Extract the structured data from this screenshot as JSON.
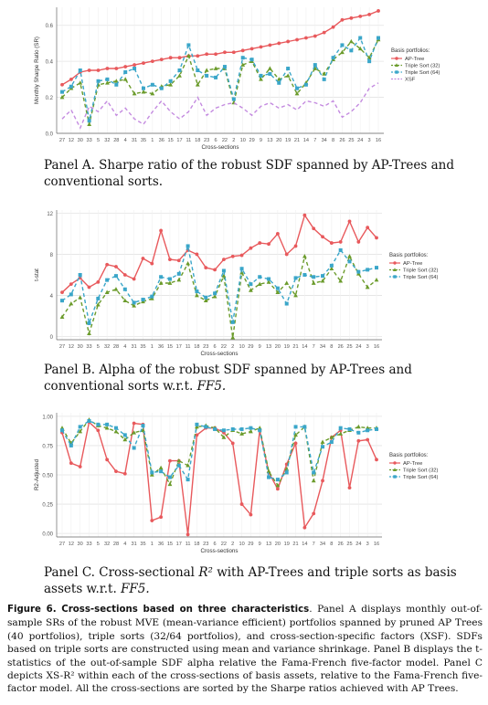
{
  "x_categories": [
    "27",
    "12",
    "30",
    "33",
    "5",
    "32",
    "28",
    "4",
    "31",
    "35",
    "1",
    "36",
    "15",
    "17",
    "11",
    "18",
    "23",
    "6",
    "22",
    "2",
    "10",
    "29",
    "9",
    "13",
    "20",
    "19",
    "21",
    "14",
    "7",
    "34",
    "8",
    "26",
    "25",
    "24",
    "3",
    "16"
  ],
  "colors": {
    "ap_trees": "#e8595c",
    "triple32": "#6b9b2b",
    "triple64": "#3aa6c9",
    "xsf": "#c48be0"
  },
  "legend_title": "Basis portfolios:",
  "chart_data": [
    {
      "type": "line",
      "panel": "A",
      "xlabel": "Cross-sections",
      "ylabel": "Monthly Sharpe Ratio (SR)",
      "ylim": [
        0,
        0.7
      ],
      "yticks": [
        "0.0",
        "0.2",
        "0.4",
        "0.6"
      ],
      "ytick_values": [
        0,
        0.2,
        0.4,
        0.6
      ],
      "grid": true,
      "legend": "right",
      "series": [
        {
          "name": "AP-Tree",
          "key": "ap_trees",
          "dash": "solid",
          "marker": "circle",
          "values": [
            0.27,
            0.3,
            0.34,
            0.35,
            0.35,
            0.36,
            0.36,
            0.37,
            0.38,
            0.39,
            0.4,
            0.41,
            0.42,
            0.42,
            0.43,
            0.43,
            0.44,
            0.44,
            0.45,
            0.45,
            0.46,
            0.47,
            0.48,
            0.49,
            0.5,
            0.51,
            0.52,
            0.53,
            0.54,
            0.56,
            0.59,
            0.63,
            0.64,
            0.65,
            0.66,
            0.68
          ]
        },
        {
          "name": "Triple Sort (32)",
          "key": "triple32",
          "dash": "dashed",
          "marker": "triangle",
          "values": [
            0.2,
            0.25,
            0.28,
            0.05,
            0.27,
            0.28,
            0.29,
            0.3,
            0.22,
            0.23,
            0.22,
            0.26,
            0.27,
            0.32,
            0.43,
            0.27,
            0.35,
            0.36,
            0.36,
            0.17,
            0.38,
            0.4,
            0.3,
            0.36,
            0.3,
            0.32,
            0.22,
            0.28,
            0.36,
            0.33,
            0.41,
            0.45,
            0.51,
            0.47,
            0.42,
            0.52
          ]
        },
        {
          "name": "Triple Sort (64)",
          "key": "triple64",
          "dash": "dashed",
          "marker": "square",
          "values": [
            0.23,
            0.26,
            0.35,
            0.07,
            0.29,
            0.3,
            0.27,
            0.34,
            0.36,
            0.25,
            0.27,
            0.25,
            0.29,
            0.35,
            0.49,
            0.35,
            0.32,
            0.31,
            0.37,
            0.19,
            0.42,
            0.41,
            0.32,
            0.33,
            0.28,
            0.36,
            0.25,
            0.27,
            0.38,
            0.3,
            0.42,
            0.49,
            0.46,
            0.53,
            0.4,
            0.53
          ]
        },
        {
          "name": "XSF",
          "key": "xsf",
          "dash": "dashed",
          "marker": "none",
          "values": [
            0.08,
            0.13,
            0.03,
            0.15,
            0.12,
            0.18,
            0.1,
            0.14,
            0.08,
            0.05,
            0.12,
            0.18,
            0.12,
            0.08,
            0.12,
            0.2,
            0.1,
            0.14,
            0.16,
            0.17,
            0.14,
            0.1,
            0.15,
            0.17,
            0.14,
            0.16,
            0.13,
            0.18,
            0.17,
            0.15,
            0.18,
            0.09,
            0.12,
            0.17,
            0.25,
            0.28
          ]
        }
      ]
    },
    {
      "type": "line",
      "panel": "B",
      "xlabel": "Cross-sections",
      "ylabel": "t-stat",
      "ylim": [
        -0.3,
        12.3
      ],
      "yticks": [
        "0",
        "4",
        "8",
        "12"
      ],
      "ytick_values": [
        0,
        4,
        8,
        12
      ],
      "grid": true,
      "legend": "right",
      "series": [
        {
          "name": "AP-Tree",
          "key": "ap_trees",
          "dash": "solid",
          "marker": "circle",
          "values": [
            4.3,
            5.1,
            5.7,
            4.8,
            5.3,
            7.0,
            6.8,
            6.0,
            5.6,
            7.6,
            7.1,
            10.3,
            7.5,
            7.4,
            8.4,
            8.0,
            6.7,
            6.5,
            7.5,
            7.8,
            7.9,
            8.6,
            9.1,
            9.0,
            10.0,
            8.0,
            8.8,
            11.8,
            10.5,
            9.7,
            9.1,
            9.2,
            11.2,
            9.2,
            10.6,
            9.6
          ]
        },
        {
          "name": "Triple Sort (32)",
          "key": "triple32",
          "dash": "dashed",
          "marker": "triangle",
          "values": [
            1.9,
            3.2,
            3.8,
            0.3,
            3.1,
            4.3,
            4.6,
            3.5,
            3.0,
            3.4,
            3.7,
            5.2,
            5.2,
            5.5,
            7.1,
            4.0,
            3.5,
            3.9,
            5.9,
            -0.1,
            6.2,
            4.5,
            5.1,
            5.3,
            4.3,
            5.2,
            4.0,
            7.8,
            5.2,
            5.4,
            6.6,
            5.4,
            7.8,
            6.1,
            4.8,
            5.5
          ]
        },
        {
          "name": "Triple Sort (64)",
          "key": "triple64",
          "dash": "dashed",
          "marker": "square",
          "values": [
            3.5,
            4.1,
            6.0,
            1.3,
            3.7,
            5.5,
            5.9,
            4.6,
            3.3,
            3.6,
            3.9,
            5.8,
            5.6,
            6.1,
            8.8,
            4.4,
            3.8,
            4.2,
            6.4,
            1.4,
            6.6,
            5.1,
            5.8,
            5.6,
            4.7,
            3.2,
            5.7,
            6.0,
            5.8,
            5.9,
            6.9,
            8.4,
            7.3,
            6.3,
            6.5,
            6.7
          ]
        }
      ]
    },
    {
      "type": "line",
      "panel": "C",
      "xlabel": "Cross-sections",
      "ylabel": "R2-Adjusted",
      "ylim": [
        -0.03,
        1.03
      ],
      "yticks": [
        "0.00",
        "0.25",
        "0.50",
        "0.75",
        "1.00"
      ],
      "ytick_values": [
        0,
        0.25,
        0.5,
        0.75,
        1.0
      ],
      "grid": true,
      "legend": "right",
      "series": [
        {
          "name": "AP-Tree",
          "key": "ap_trees",
          "dash": "solid",
          "marker": "circle",
          "values": [
            0.86,
            0.6,
            0.57,
            0.95,
            0.88,
            0.63,
            0.53,
            0.51,
            0.94,
            0.93,
            0.11,
            0.14,
            0.62,
            0.62,
            -0.01,
            0.84,
            0.9,
            0.9,
            0.86,
            0.77,
            0.25,
            0.16,
            0.88,
            0.52,
            0.38,
            0.59,
            0.77,
            0.05,
            0.17,
            0.45,
            0.82,
            0.88,
            0.39,
            0.79,
            0.8,
            0.63
          ]
        },
        {
          "name": "Triple Sort (32)",
          "key": "triple32",
          "dash": "dashed",
          "marker": "triangle",
          "values": [
            0.9,
            0.77,
            0.87,
            0.97,
            0.92,
            0.9,
            0.87,
            0.8,
            0.86,
            0.88,
            0.5,
            0.56,
            0.42,
            0.62,
            0.58,
            0.91,
            0.92,
            0.9,
            0.82,
            0.88,
            0.85,
            0.87,
            0.9,
            0.53,
            0.41,
            0.55,
            0.84,
            0.91,
            0.45,
            0.78,
            0.82,
            0.85,
            0.88,
            0.91,
            0.9,
            0.9
          ]
        },
        {
          "name": "Triple Sort (64)",
          "key": "triple64",
          "dash": "dashed",
          "marker": "square",
          "values": [
            0.88,
            0.75,
            0.91,
            0.96,
            0.93,
            0.93,
            0.9,
            0.84,
            0.73,
            0.92,
            0.52,
            0.53,
            0.48,
            0.58,
            0.46,
            0.93,
            0.91,
            0.89,
            0.88,
            0.89,
            0.89,
            0.9,
            0.88,
            0.48,
            0.46,
            0.52,
            0.91,
            0.91,
            0.52,
            0.74,
            0.78,
            0.9,
            0.89,
            0.86,
            0.88,
            0.89
          ]
        }
      ]
    }
  ],
  "captions": {
    "a_label": "Panel A.",
    "a_text": "Sharpe ratio of the robust SDF spanned by AP-Trees and conventional sorts.",
    "b_label": "Panel B.",
    "b_text": "Alpha of the robust SDF spanned by AP-Trees and conventional sorts w.r.t.",
    "b_ital": "FF5.",
    "c_label": "Panel C.",
    "c_text_1": "Cross-sectional",
    "c_r2": "R²",
    "c_text_2": "with AP-Trees and triple sorts as basis assets w.r.t.",
    "c_ital": "FF5."
  },
  "figure": {
    "label": "Figure 6. Cross-sections based on three characteristics",
    "text": ". Panel A displays monthly out-of-sample SRs of the robust MVE (mean-variance efficient) portfolios spanned by pruned AP Trees (40 portfolios), triple sorts (32/64 portfolios), and cross-section-specific factors (XSF). SDFs based on triple sorts are constructed using mean and variance shrinkage. Panel B displays the t-statistics of the out-of-sample SDF alpha relative the Fama-French five-factor model. Panel C depicts XS-R² within each of the cross-sections of basis assets, relative to the Fama-French five-factor model. All the cross-sections are sorted by the Sharpe ratios achieved with AP Trees."
  }
}
